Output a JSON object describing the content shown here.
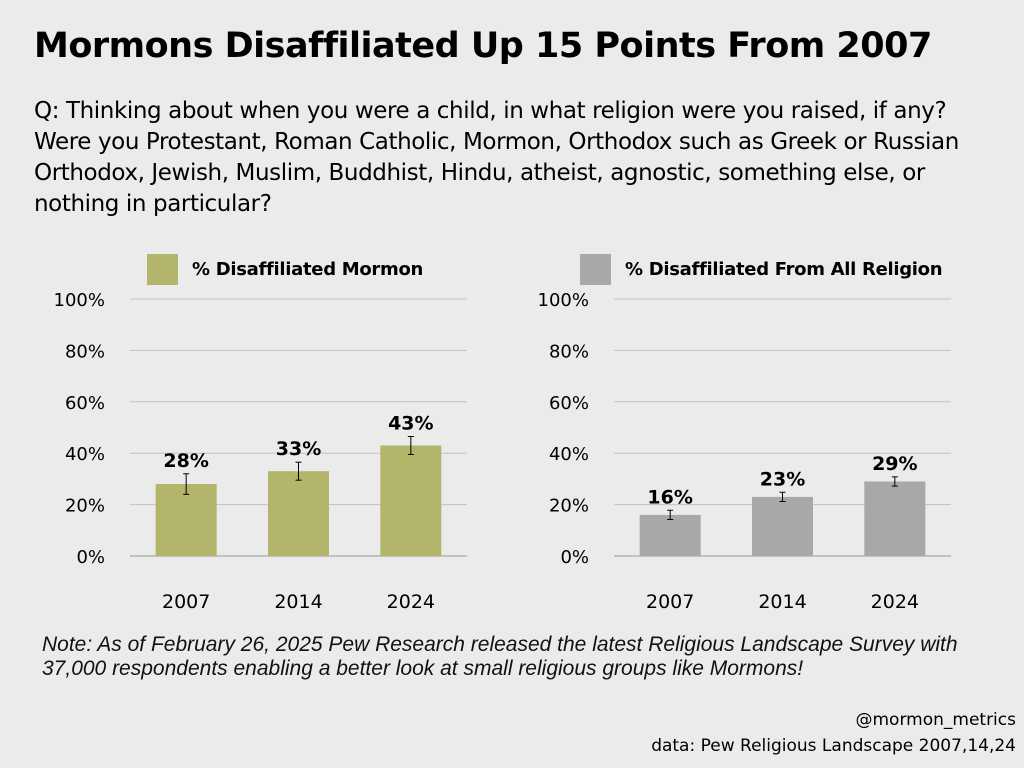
{
  "title": "Mormons Disaffiliated Up 15 Points From 2007",
  "question": "Q: Thinking about when you were a child, in what religion were you raised, if any? Were you Protestant, Roman Catholic, Mormon, Orthodox such as Greek or Russian Orthodox, Jewish, Muslim, Buddhist, Hindu, atheist, agnostic, something else, or nothing in particular?",
  "note": "Note: As of February 26, 2025 Pew Research released the latest Religious Landscape Survey with 37,000 respondents enabling a better look at small religious groups like Mormons!",
  "credit": {
    "handle": "@mormon_metrics",
    "source": "data: Pew Religious Landscape 2007,14,24"
  },
  "chart_data": [
    {
      "type": "bar",
      "legend": "% Disaffiliated Mormon",
      "color": "#b3b56b",
      "categories": [
        "2007",
        "2014",
        "2024"
      ],
      "values": [
        28,
        33,
        43
      ],
      "data_labels": [
        "28%",
        "33%",
        "43%"
      ],
      "error_margin": [
        4,
        3.5,
        3.5
      ],
      "ylim": [
        0,
        100
      ],
      "yticks": [
        "0%",
        "20%",
        "40%",
        "60%",
        "80%",
        "100%"
      ],
      "grid": true,
      "legend_position": "top"
    },
    {
      "type": "bar",
      "legend": "% Disaffiliated From All Religion",
      "color": "#a8a8a8",
      "categories": [
        "2007",
        "2014",
        "2024"
      ],
      "values": [
        16,
        23,
        29
      ],
      "data_labels": [
        "16%",
        "23%",
        "29%"
      ],
      "error_margin": [
        1.8,
        1.8,
        1.8
      ],
      "ylim": [
        0,
        100
      ],
      "yticks": [
        "0%",
        "20%",
        "40%",
        "60%",
        "80%",
        "100%"
      ],
      "grid": true,
      "legend_position": "top"
    }
  ]
}
